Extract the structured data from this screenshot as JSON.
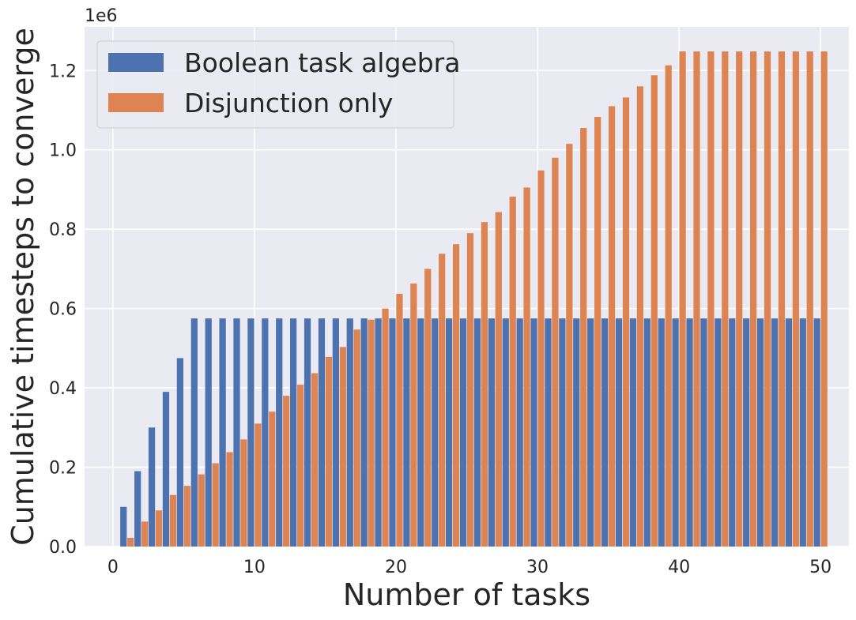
{
  "chart_data": {
    "type": "bar",
    "xlabel": "Number of tasks",
    "ylabel": "Cumulative timesteps to converge",
    "y_offset_label": "1e6",
    "xlim": [
      -2,
      52
    ],
    "ylim": [
      0,
      1.31
    ],
    "y_scale_factor": 1000000,
    "x_ticks": [
      0,
      10,
      20,
      30,
      40,
      50
    ],
    "y_ticks": [
      0.0,
      0.2,
      0.4,
      0.6,
      0.8,
      1.0,
      1.2
    ],
    "y_tick_labels": [
      "0.0",
      "0.2",
      "0.4",
      "0.6",
      "0.8",
      "1.0",
      "1.2"
    ],
    "x_tick_labels": [
      "0",
      "10",
      "20",
      "30",
      "40",
      "50"
    ],
    "grid": true,
    "legend_position": "top-left",
    "x": [
      1,
      2,
      3,
      4,
      5,
      6,
      7,
      8,
      9,
      10,
      11,
      12,
      13,
      14,
      15,
      16,
      17,
      18,
      19,
      20,
      21,
      22,
      23,
      24,
      25,
      26,
      27,
      28,
      29,
      30,
      31,
      32,
      33,
      34,
      35,
      36,
      37,
      38,
      39,
      40,
      41,
      42,
      43,
      44,
      45,
      46,
      47,
      48,
      49,
      50
    ],
    "series": [
      {
        "name": "Boolean task algebra",
        "color": "#4c72b0",
        "values": [
          0.1,
          0.19,
          0.3,
          0.39,
          0.475,
          0.575,
          0.575,
          0.575,
          0.575,
          0.575,
          0.575,
          0.575,
          0.575,
          0.575,
          0.575,
          0.575,
          0.575,
          0.575,
          0.575,
          0.575,
          0.575,
          0.575,
          0.575,
          0.575,
          0.575,
          0.575,
          0.575,
          0.575,
          0.575,
          0.575,
          0.575,
          0.575,
          0.575,
          0.575,
          0.575,
          0.575,
          0.575,
          0.575,
          0.575,
          0.575,
          0.575,
          0.575,
          0.575,
          0.575,
          0.575,
          0.575,
          0.575,
          0.575,
          0.575,
          0.575
        ]
      },
      {
        "name": "Disjunction only",
        "color": "#dd8452",
        "values": [
          0.022,
          0.063,
          0.091,
          0.13,
          0.153,
          0.182,
          0.21,
          0.238,
          0.27,
          0.31,
          0.34,
          0.38,
          0.408,
          0.437,
          0.478,
          0.503,
          0.547,
          0.572,
          0.6,
          0.637,
          0.663,
          0.7,
          0.738,
          0.762,
          0.79,
          0.818,
          0.843,
          0.882,
          0.905,
          0.948,
          0.98,
          1.015,
          1.055,
          1.083,
          1.11,
          1.132,
          1.16,
          1.188,
          1.213,
          1.248,
          1.248,
          1.248,
          1.248,
          1.248,
          1.248,
          1.248,
          1.248,
          1.248,
          1.248,
          1.248
        ]
      }
    ]
  }
}
